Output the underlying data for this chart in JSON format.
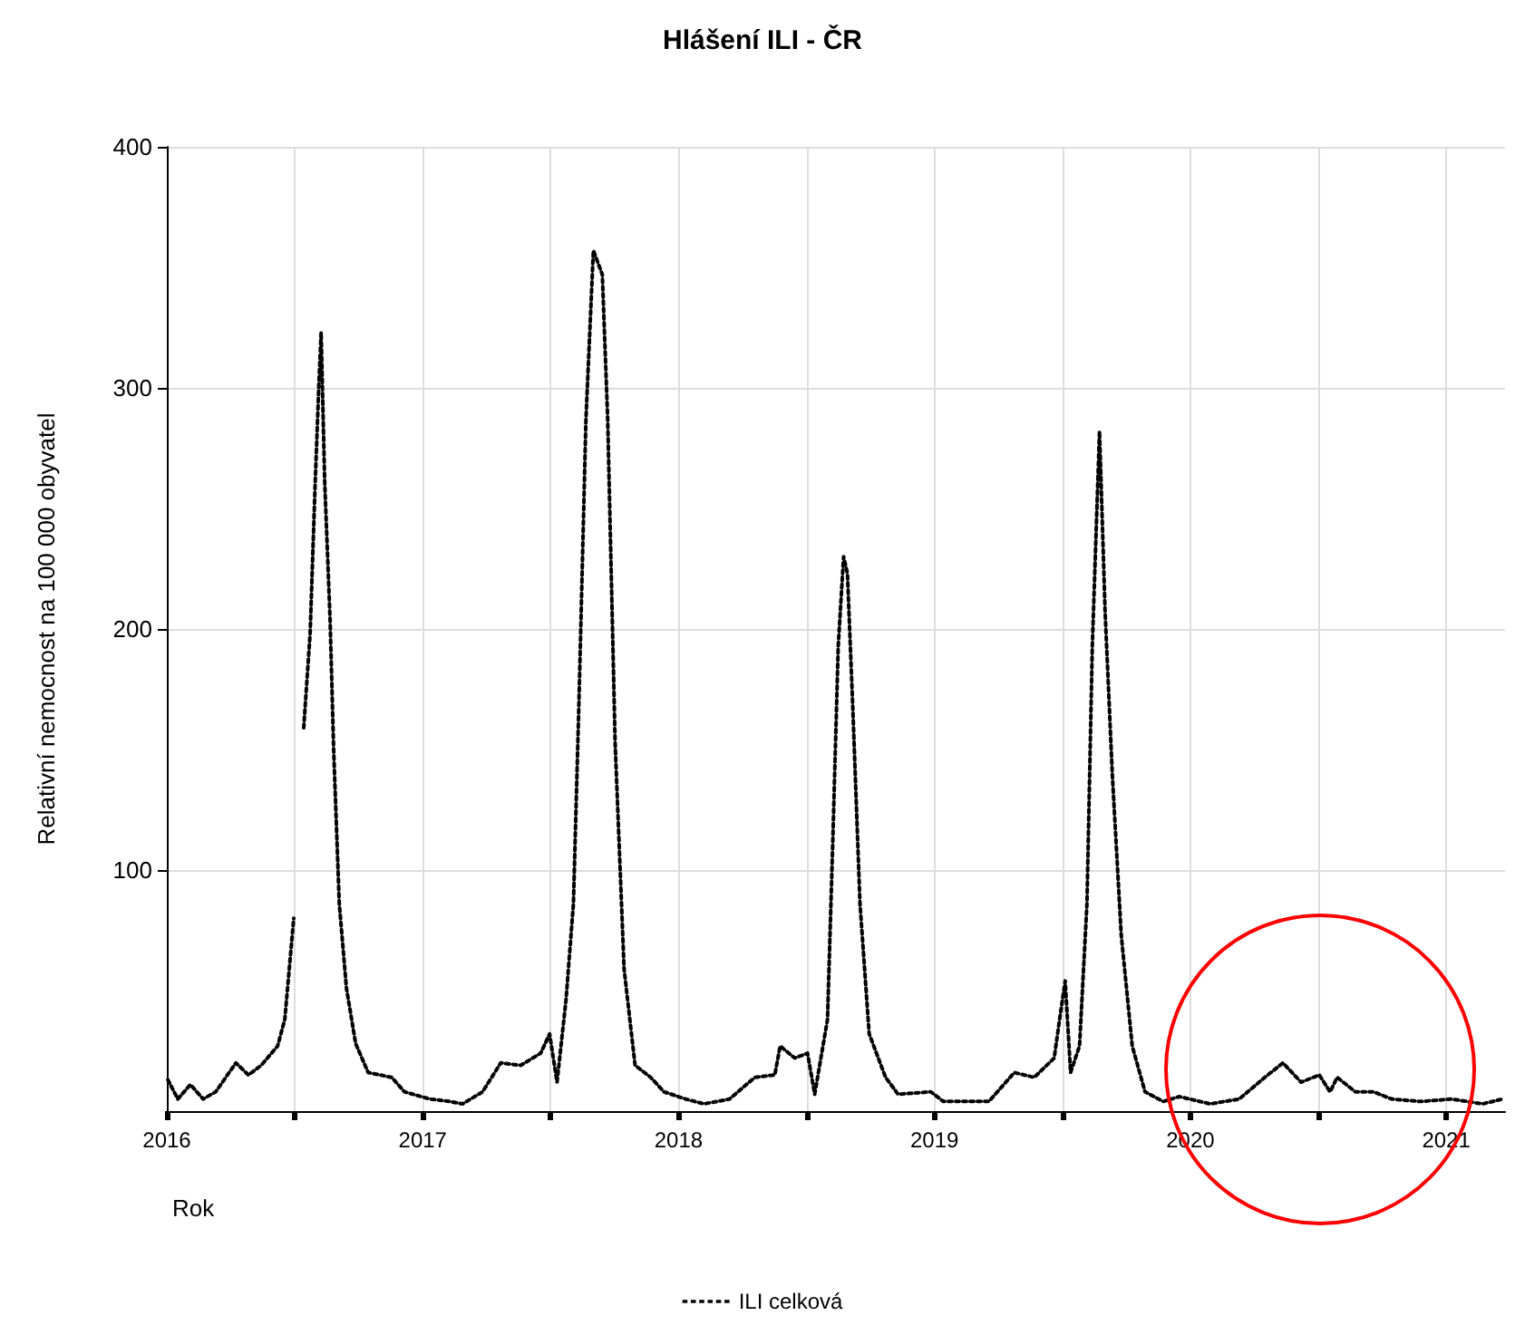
{
  "chart_data": {
    "type": "line",
    "title": "Hlášení ILI - ČR",
    "xlabel": "Rok",
    "ylabel": "Relativní nemocnost na 100 000 obyvatel",
    "xlim": [
      2016,
      2021.23
    ],
    "xticks": [
      2016,
      {
        "value": 2016.5,
        "label": null
      },
      2017,
      {
        "value": 2017.5,
        "label": null
      },
      2018,
      {
        "value": 2018.5,
        "label": null
      },
      2019,
      {
        "value": 2019.5,
        "label": null
      },
      2020,
      {
        "value": 2020.5,
        "label": null
      },
      2021
    ],
    "ylim": [
      0,
      400
    ],
    "yticks": [
      100,
      200,
      300,
      400
    ],
    "grid": true,
    "legend": "bottom",
    "marker": "none",
    "line_style": "dotted",
    "series": [
      {
        "name": "ILI celková",
        "color": "#000000",
        "x": [
          2016.004,
          2016.043,
          2016.092,
          2016.142,
          2016.191,
          2016.27,
          2016.319,
          2016.369,
          2016.433,
          2016.461,
          2016.496,
          2016.511,
          2016.535,
          2016.56,
          2016.579,
          2016.594,
          2016.603,
          2016.617,
          2016.638,
          2016.652,
          2016.674,
          2016.702,
          2016.738,
          2016.787,
          2016.879,
          2016.929,
          2017.028,
          2017.106,
          2017.156,
          2017.234,
          2017.305,
          2017.383,
          2017.461,
          2017.496,
          2017.525,
          2017.56,
          2017.589,
          2017.61,
          2017.638,
          2017.667,
          2017.702,
          2017.723,
          2017.752,
          2017.787,
          2017.83,
          2017.891,
          2017.943,
          2018.028,
          2018.099,
          2018.199,
          2018.298,
          2018.376,
          2018.397,
          2018.454,
          2018.504,
          2018.532,
          2018.582,
          2018.603,
          2018.624,
          2018.645,
          2018.66,
          2018.681,
          2018.709,
          2018.745,
          2018.809,
          2018.858,
          2018.986,
          2019.035,
          2019.213,
          2019.312,
          2019.39,
          2019.468,
          2019.489,
          2019.511,
          2019.532,
          2019.567,
          2019.596,
          2019.617,
          2019.645,
          2019.667,
          2019.695,
          2019.73,
          2019.773,
          2019.823,
          2019.894,
          2019.957,
          2020.078,
          2020.191,
          2020.291,
          2020.362,
          2020.433,
          2020.504,
          2020.546,
          2020.574,
          2020.645,
          2020.716,
          2020.787,
          2020.901,
          2021.021,
          2021.142,
          2021.22
        ],
        "values": [
          13,
          5,
          11,
          5,
          8,
          20,
          15,
          19,
          27,
          38,
          80,
          null,
          159,
          198,
          258,
          301,
          323,
          261,
          204,
          150,
          86,
          51,
          28,
          16,
          14,
          8,
          5,
          4,
          3,
          8,
          20,
          19,
          24,
          32,
          12,
          46,
          86,
          167,
          287,
          357,
          347,
          287,
          153,
          59,
          19,
          14,
          8,
          5,
          3,
          5,
          14,
          15,
          27,
          22,
          24,
          7,
          38,
          113,
          193,
          230,
          223,
          167,
          86,
          32,
          14,
          7,
          8,
          4,
          4,
          16,
          14,
          22,
          38,
          54,
          16,
          27,
          86,
          193,
          282,
          207,
          140,
          73,
          27,
          8,
          4,
          6,
          3,
          5,
          14,
          20,
          12,
          15,
          8,
          14,
          8,
          8,
          5,
          4,
          5,
          3,
          5
        ]
      }
    ]
  }
}
